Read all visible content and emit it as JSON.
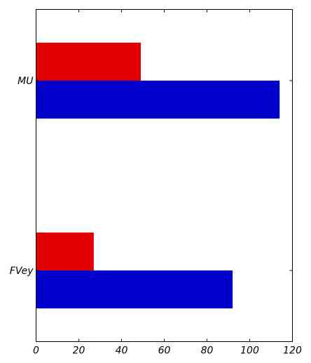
{
  "chart_data": {
    "type": "bar",
    "orientation": "horizontal",
    "categories": [
      "FVey",
      "MU"
    ],
    "series": [
      {
        "values": [
          27,
          49
        ],
        "color": "#e00000"
      },
      {
        "values": [
          92,
          114
        ],
        "color": "#0000cc"
      }
    ],
    "xlim": [
      0,
      120
    ],
    "xticks": [
      0,
      20,
      40,
      60,
      80,
      100,
      120
    ],
    "title": "",
    "xlabel": "",
    "ylabel": "",
    "grid": false,
    "legend": "none"
  }
}
